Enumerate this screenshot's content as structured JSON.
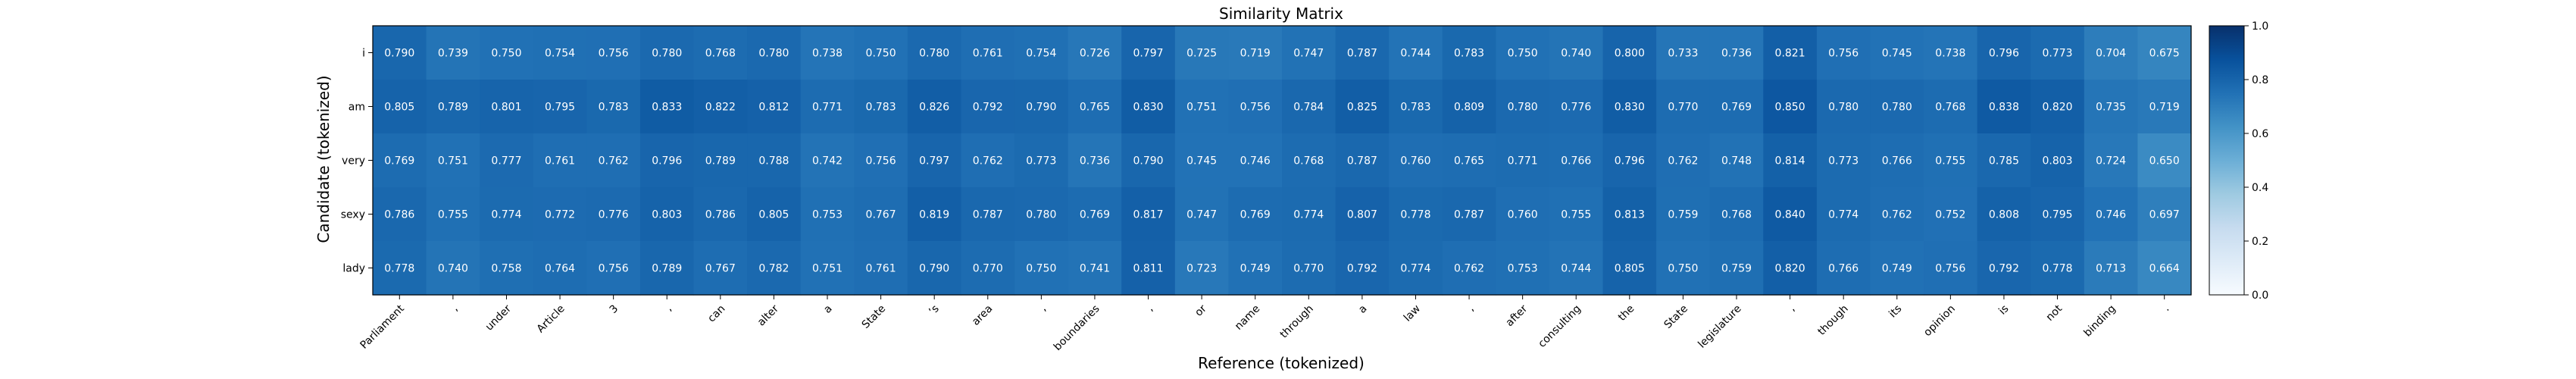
{
  "chart_data": {
    "type": "heatmap",
    "title": "Similarity Matrix",
    "xlabel": "Reference (tokenized)",
    "ylabel": "Candidate (tokenized)",
    "x": [
      "Parliament",
      ",",
      "under",
      "Article",
      "3",
      ",",
      "can",
      "alter",
      "a",
      "State",
      "’s",
      "area",
      ",",
      "boundaries",
      ",",
      "or",
      "name",
      "through",
      "a",
      "law",
      ",",
      "after",
      "consulting",
      "the",
      "State",
      "legislature",
      ",",
      "though",
      "its",
      "opinion",
      "is",
      "not",
      "binding",
      "."
    ],
    "y": [
      "i",
      "am",
      "very",
      "sexy",
      "lady"
    ],
    "values": [
      [
        0.79,
        0.739,
        0.75,
        0.754,
        0.756,
        0.78,
        0.768,
        0.78,
        0.738,
        0.75,
        0.78,
        0.761,
        0.754,
        0.726,
        0.797,
        0.725,
        0.719,
        0.747,
        0.787,
        0.744,
        0.783,
        0.75,
        0.74,
        0.8,
        0.733,
        0.736,
        0.821,
        0.756,
        0.745,
        0.738,
        0.796,
        0.773,
        0.704,
        0.675
      ],
      [
        0.805,
        0.789,
        0.801,
        0.795,
        0.783,
        0.833,
        0.822,
        0.812,
        0.771,
        0.783,
        0.826,
        0.792,
        0.79,
        0.765,
        0.83,
        0.751,
        0.756,
        0.784,
        0.825,
        0.783,
        0.809,
        0.78,
        0.776,
        0.83,
        0.77,
        0.769,
        0.85,
        0.78,
        0.78,
        0.768,
        0.838,
        0.82,
        0.735,
        0.719
      ],
      [
        0.769,
        0.751,
        0.777,
        0.761,
        0.762,
        0.796,
        0.789,
        0.788,
        0.742,
        0.756,
        0.797,
        0.762,
        0.773,
        0.736,
        0.79,
        0.745,
        0.746,
        0.768,
        0.787,
        0.76,
        0.765,
        0.771,
        0.766,
        0.796,
        0.762,
        0.748,
        0.814,
        0.773,
        0.766,
        0.755,
        0.785,
        0.803,
        0.724,
        0.65
      ],
      [
        0.786,
        0.755,
        0.774,
        0.772,
        0.776,
        0.803,
        0.786,
        0.805,
        0.753,
        0.767,
        0.819,
        0.787,
        0.78,
        0.769,
        0.817,
        0.747,
        0.769,
        0.774,
        0.807,
        0.778,
        0.787,
        0.76,
        0.755,
        0.813,
        0.759,
        0.768,
        0.84,
        0.774,
        0.762,
        0.752,
        0.808,
        0.795,
        0.746,
        0.697
      ],
      [
        0.778,
        0.74,
        0.758,
        0.764,
        0.756,
        0.789,
        0.767,
        0.782,
        0.751,
        0.761,
        0.79,
        0.77,
        0.75,
        0.741,
        0.811,
        0.723,
        0.749,
        0.77,
        0.792,
        0.774,
        0.762,
        0.753,
        0.744,
        0.805,
        0.75,
        0.759,
        0.82,
        0.766,
        0.749,
        0.756,
        0.792,
        0.778,
        0.713,
        0.664
      ]
    ],
    "colorbar": {
      "colormap": "Blues",
      "range": [
        0.0,
        1.0
      ],
      "ticks": [
        "0.0",
        "0.2",
        "0.4",
        "0.6",
        "0.8",
        "1.0"
      ]
    },
    "grid": false
  }
}
